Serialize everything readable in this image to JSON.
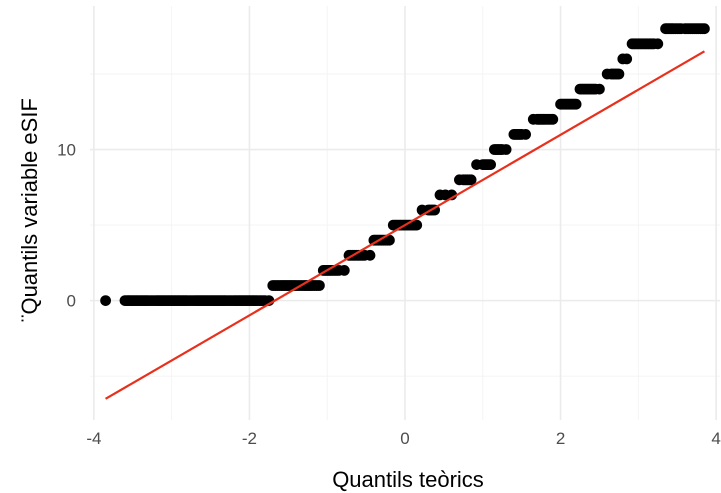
{
  "chart_data": {
    "type": "scatter",
    "title": "",
    "xlabel": "Quantils teòrics",
    "ylabel": "¨Quantils variable eSIF",
    "xlim": [
      -4.05,
      4.05
    ],
    "ylim": [
      -7.9,
      19.5
    ],
    "x_ticks": [
      -4,
      -2,
      0,
      2,
      4
    ],
    "y_ticks": [
      0,
      10
    ],
    "grid": true,
    "legend": "none",
    "point_color": "#000000",
    "line_color": "#e8301c",
    "reference_line": {
      "x": [
        -3.85,
        3.85
      ],
      "y": [
        -6.5,
        16.5
      ]
    },
    "series": [
      {
        "x": [
          -3.85,
          -3.6,
          -3.5,
          -3.4,
          -3.3,
          -3.2,
          -3.1,
          -3.0,
          -2.9,
          -2.8,
          -2.7,
          -2.6,
          -2.5,
          -2.4,
          -2.3,
          -2.2,
          -2.1,
          -2.0,
          -1.9,
          -1.8,
          -1.75,
          -1.7,
          -1.6,
          -1.5,
          -1.4,
          -1.3,
          -1.2,
          -1.1,
          -1.05,
          -0.95,
          -0.85,
          -0.78,
          -0.72,
          -0.62,
          -0.52,
          -0.45,
          -0.4,
          -0.3,
          -0.2,
          -0.15,
          -0.05,
          0.05,
          0.15,
          0.22,
          0.3,
          0.38,
          0.45,
          0.52,
          0.6,
          0.7,
          0.75,
          0.85,
          0.92,
          1.0,
          1.1,
          1.15,
          1.25,
          1.3,
          1.4,
          1.5,
          1.55,
          1.65,
          1.7,
          1.8,
          1.9,
          2.0,
          2.1,
          2.2,
          2.25,
          2.35,
          2.45,
          2.5,
          2.6,
          2.65,
          2.75,
          2.8,
          2.85,
          2.92,
          3.0,
          3.1,
          3.2,
          3.25,
          3.35,
          3.45,
          3.55,
          3.6,
          3.85
        ],
        "y": [
          0,
          0,
          0,
          0,
          0,
          0,
          0,
          0,
          0,
          0,
          0,
          0,
          0,
          0,
          0,
          0,
          0,
          0,
          0,
          0,
          0,
          1,
          1,
          1,
          1,
          1,
          1,
          1,
          2,
          2,
          2,
          2,
          3,
          3,
          3,
          3,
          4,
          4,
          4,
          5,
          5,
          5,
          5,
          6,
          6,
          6,
          7,
          7,
          7,
          8,
          8,
          8,
          9,
          9,
          9,
          10,
          10,
          10,
          11,
          11,
          11,
          12,
          12,
          12,
          12,
          13,
          13,
          13,
          14,
          14,
          14,
          14,
          15,
          15,
          15,
          16,
          16,
          17,
          17,
          17,
          17,
          17,
          18,
          18,
          18,
          18,
          18
        ]
      }
    ]
  }
}
